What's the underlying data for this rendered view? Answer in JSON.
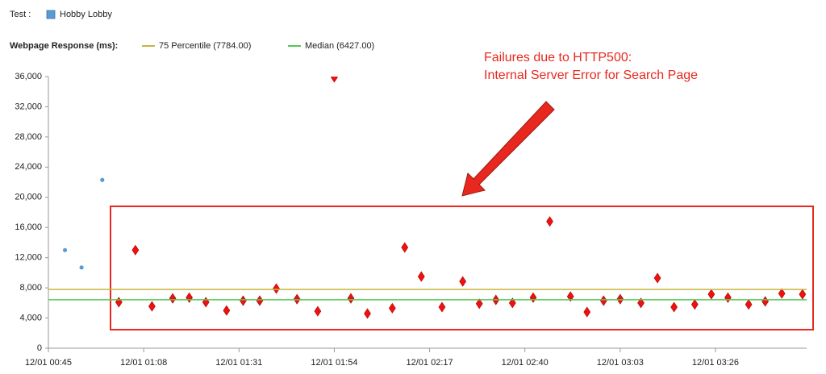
{
  "chart_data": {
    "type": "scatter",
    "test_label": "Test :",
    "y_legend_title": "Webpage Response (ms):",
    "annotation": [
      "Failures due to HTTP500:",
      "Internal Server Error for Search Page"
    ],
    "series": [
      {
        "name": "Hobby Lobby",
        "color": "#5b9bd5",
        "marker": "circle",
        "x": [
          "12/01 00:49",
          "12/01 00:53",
          "12/01 00:58"
        ],
        "values": [
          13000,
          10700,
          22300
        ]
      },
      {
        "color": "#ee1111",
        "marker": "diamond",
        "x": [
          "12/01 01:02",
          "12/01 01:06",
          "12/01 01:10",
          "12/01 01:15",
          "12/01 01:19",
          "12/01 01:23",
          "12/01 01:28",
          "12/01 01:32",
          "12/01 01:36",
          "12/01 01:40",
          "12/01 01:45",
          "12/01 01:50",
          "12/01 01:54",
          "12/01 01:58",
          "12/01 02:02",
          "12/01 02:08",
          "12/01 02:11",
          "12/01 02:15",
          "12/01 02:20",
          "12/01 02:25",
          "12/01 02:29",
          "12/01 02:33",
          "12/01 02:37",
          "12/01 02:42",
          "12/01 02:46",
          "12/01 02:51",
          "12/01 02:55",
          "12/01 02:59",
          "12/01 03:03",
          "12/01 03:08",
          "12/01 03:12",
          "12/01 03:16",
          "12/01 03:21",
          "12/01 03:25",
          "12/01 03:29",
          "12/01 03:34",
          "12/01 03:38",
          "12/01 03:42",
          "12/01 03:47"
        ],
        "values": [
          6100,
          13000,
          5550,
          6600,
          6700,
          6100,
          5000,
          6300,
          6300,
          7900,
          6500,
          4900,
          35900,
          6600,
          4600,
          5300,
          13350,
          9500,
          5450,
          8850,
          5900,
          6400,
          6000,
          6700,
          16800,
          6850,
          4800,
          6300,
          6500,
          6000,
          9300,
          5450,
          5800,
          7150,
          6700,
          5800,
          6200,
          7250,
          7150
        ]
      }
    ],
    "reference_lines": [
      {
        "name": "75 Percentile (7784.00)",
        "value": 7784,
        "color": "#c8b43c"
      },
      {
        "name": "Median (6427.00)",
        "value": 6427,
        "color": "#55c855"
      }
    ],
    "xlim": [
      "12/01 00:45",
      "12/01 03:48"
    ],
    "xticks": [
      "12/01 00:45",
      "12/01 01:08",
      "12/01 01:31",
      "12/01 01:54",
      "12/01 02:17",
      "12/01 02:40",
      "12/01 03:03",
      "12/01 03:26"
    ],
    "ylim": [
      0,
      36000
    ],
    "yticks": [
      0,
      {
        "value": 4000,
        "label": "4,000"
      },
      {
        "value": 8000,
        "label": "8,000"
      },
      {
        "value": 12000,
        "label": "12,000"
      },
      {
        "value": 16000,
        "label": "16,000"
      },
      {
        "value": 20000,
        "label": "20,000"
      },
      {
        "value": 24000,
        "label": "24,000"
      },
      {
        "value": 28000,
        "label": "28,000"
      },
      {
        "value": 32000,
        "label": "32,000"
      },
      {
        "value": 36000,
        "label": "36,000"
      }
    ],
    "grid": false
  }
}
